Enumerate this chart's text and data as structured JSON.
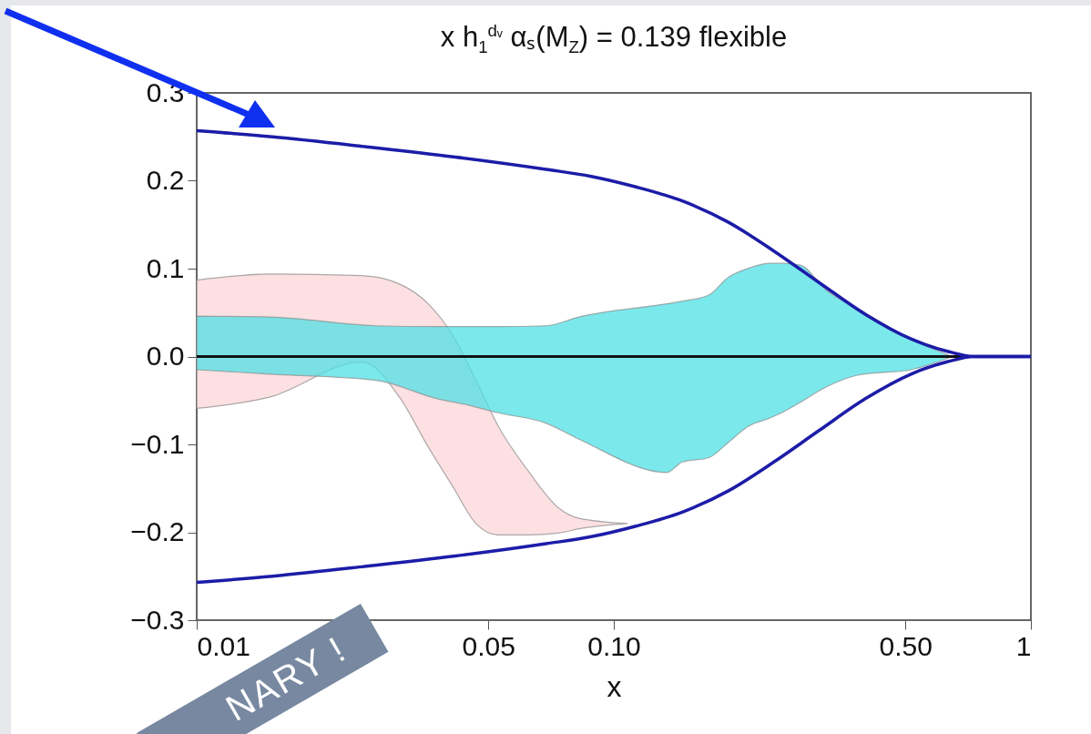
{
  "chart_data": {
    "type": "line",
    "title": "x h$_{1}$$^{dᵥ}$ αₛ(M$_{Z}$) = 0.139 flexible",
    "xlabel": "x",
    "log": "x",
    "grid": false,
    "marker": "none",
    "line_style": "solid",
    "xlim": [
      0.01,
      1
    ],
    "xticks": [
      0.01,
      0.05,
      {
        "value": 0.1,
        "label": "0.10"
      },
      {
        "value": 0.5,
        "label": "0.50"
      },
      1
    ],
    "ylim": [
      -0.3,
      0.3
    ],
    "yticks": [
      {
        "value": -0.3,
        "label": "−0.3"
      },
      {
        "value": -0.2,
        "label": "−0.2"
      },
      {
        "value": -0.1,
        "label": "−0.1"
      },
      {
        "value": 0,
        "label": "0.0"
      },
      0.1,
      0.2,
      0.3
    ],
    "series": [
      {
        "type": "area",
        "color": "#fcd6d8",
        "values": [
          null,
          null,
          null,
          null,
          null,
          null,
          null,
          null,
          null,
          null,
          null,
          null
        ],
        "x": [
          0.01,
          0.015,
          0.0249,
          0.0308,
          0.0359,
          0.041,
          0.0467,
          0.0528,
          0.0623,
          0.0736,
          0.0825,
          0.108
        ],
        "lower": [
          -0.059,
          -0.046,
          -0.006,
          -0.048,
          -0.103,
          -0.147,
          -0.19,
          -0.203,
          -0.203,
          -0.201,
          -0.196,
          -0.19
        ],
        "upper": [
          0.087,
          0.094,
          0.092,
          0.082,
          0.06,
          0.025,
          -0.027,
          -0.079,
          -0.13,
          -0.172,
          -0.184,
          -0.19
        ]
      },
      {
        "type": "area",
        "color": "#4fe0e4",
        "values": [
          null,
          null,
          null,
          null,
          null,
          null,
          null,
          null,
          null,
          null,
          null,
          null,
          null,
          null,
          null,
          null,
          null,
          null,
          null,
          null
        ],
        "x": [
          0.01,
          0.015,
          0.0269,
          0.0377,
          0.0445,
          0.0528,
          0.0689,
          0.0825,
          0.134,
          0.146,
          0.169,
          0.188,
          0.209,
          0.237,
          0.255,
          0.28,
          0.322,
          0.386,
          0.516,
          0.648
        ],
        "lower": [
          -0.015,
          -0.02,
          -0.027,
          -0.048,
          -0.055,
          -0.064,
          -0.076,
          -0.094,
          -0.132,
          -0.12,
          -0.115,
          -0.098,
          -0.08,
          -0.07,
          -0.063,
          -0.052,
          -0.035,
          -0.021,
          -0.015,
          0
        ],
        "upper": [
          0.046,
          0.045,
          0.035,
          0.034,
          0.034,
          0.034,
          0.035,
          0.045,
          0.06,
          0.063,
          0.07,
          0.09,
          0.1,
          0.106,
          0.106,
          0.104,
          0.076,
          0.054,
          0.02,
          0
        ]
      },
      {
        "color": "#1c1ca8",
        "x": [
          0.01,
          0.0152,
          0.0252,
          0.0417,
          0.0688,
          0.0883,
          0.113,
          0.146,
          0.188,
          0.242,
          0.311,
          0.401,
          0.516,
          0.63,
          0.73,
          1
        ],
        "values": [
          0.257,
          0.25,
          0.239,
          0.227,
          0.213,
          0.205,
          0.193,
          0.177,
          0.153,
          0.12,
          0.084,
          0.048,
          0.02,
          0.006,
          0,
          0
        ]
      },
      {
        "color": "#1c1ca8",
        "x": [
          0.01,
          0.0152,
          0.0252,
          0.0417,
          0.0688,
          0.0883,
          0.113,
          0.146,
          0.188,
          0.242,
          0.311,
          0.401,
          0.516,
          0.63,
          0.73,
          1
        ],
        "values": [
          -0.257,
          -0.25,
          -0.239,
          -0.227,
          -0.213,
          -0.205,
          -0.193,
          -0.177,
          -0.153,
          -0.12,
          -0.084,
          -0.048,
          -0.02,
          -0.006,
          0,
          0
        ]
      }
    ],
    "ref_lines": [
      {
        "axis": "y",
        "value": 0,
        "color": "#111111"
      }
    ],
    "annotations": [
      "NARY !"
    ]
  }
}
